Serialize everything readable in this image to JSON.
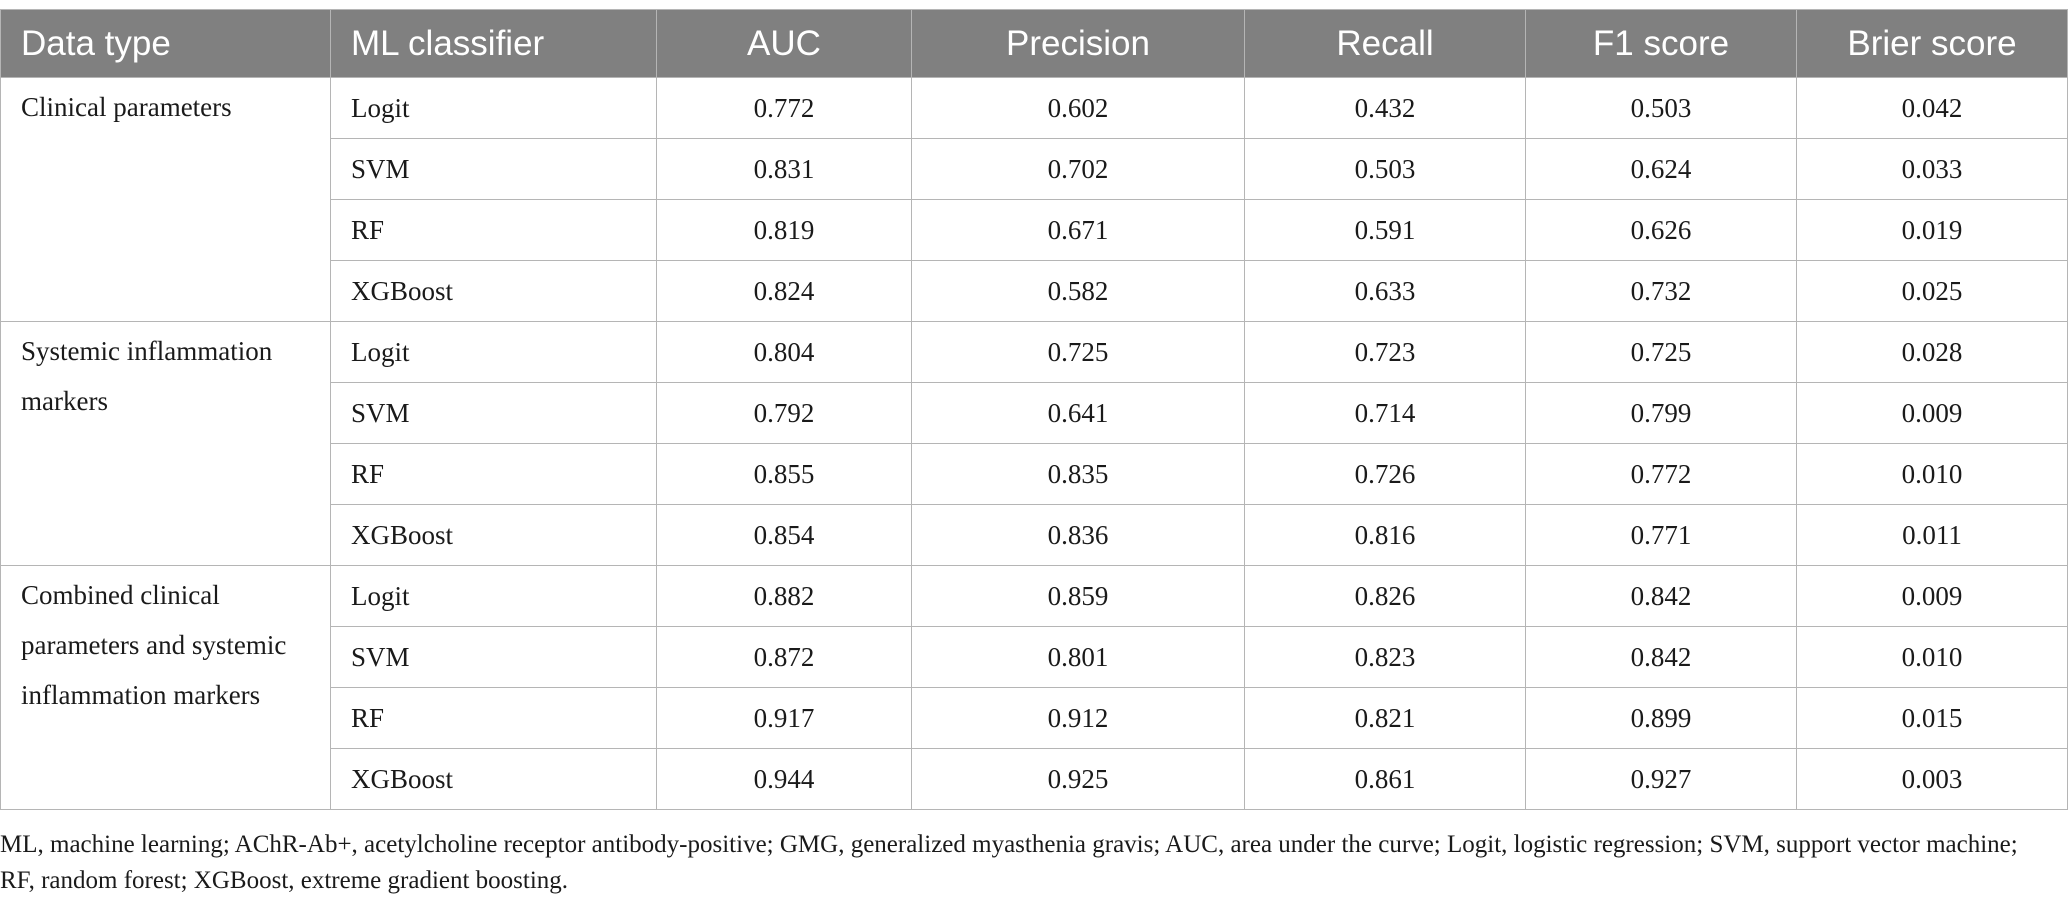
{
  "table": {
    "headers": [
      "Data type",
      "ML classifier",
      "AUC",
      "Precision",
      "Recall",
      "F1 score",
      "Brier score"
    ],
    "groups": [
      {
        "data_type": "Clinical parameters",
        "rows": [
          {
            "classifier": "Logit",
            "values": [
              "0.772",
              "0.602",
              "0.432",
              "0.503",
              "0.042"
            ]
          },
          {
            "classifier": "SVM",
            "values": [
              "0.831",
              "0.702",
              "0.503",
              "0.624",
              "0.033"
            ]
          },
          {
            "classifier": "RF",
            "values": [
              "0.819",
              "0.671",
              "0.591",
              "0.626",
              "0.019"
            ]
          },
          {
            "classifier": "XGBoost",
            "values": [
              "0.824",
              "0.582",
              "0.633",
              "0.732",
              "0.025"
            ]
          }
        ]
      },
      {
        "data_type": "Systemic inflammation markers",
        "rows": [
          {
            "classifier": "Logit",
            "values": [
              "0.804",
              "0.725",
              "0.723",
              "0.725",
              "0.028"
            ]
          },
          {
            "classifier": "SVM",
            "values": [
              "0.792",
              "0.641",
              "0.714",
              "0.799",
              "0.009"
            ]
          },
          {
            "classifier": "RF",
            "values": [
              "0.855",
              "0.835",
              "0.726",
              "0.772",
              "0.010"
            ]
          },
          {
            "classifier": "XGBoost",
            "values": [
              "0.854",
              "0.836",
              "0.816",
              "0.771",
              "0.011"
            ]
          }
        ]
      },
      {
        "data_type": "Combined clinical parameters and systemic inflammation markers",
        "rows": [
          {
            "classifier": "Logit",
            "values": [
              "0.882",
              "0.859",
              "0.826",
              "0.842",
              "0.009"
            ]
          },
          {
            "classifier": "SVM",
            "values": [
              "0.872",
              "0.801",
              "0.823",
              "0.842",
              "0.010"
            ]
          },
          {
            "classifier": "RF",
            "values": [
              "0.917",
              "0.912",
              "0.821",
              "0.899",
              "0.015"
            ]
          },
          {
            "classifier": "XGBoost",
            "values": [
              "0.944",
              "0.925",
              "0.861",
              "0.927",
              "0.003"
            ]
          }
        ]
      }
    ]
  },
  "footnote": "ML, machine learning; AChR-Ab+, acetylcholine receptor antibody-positive; GMG, generalized myasthenia gravis; AUC, area under the curve; Logit, logistic regression; SVM, support vector machine; RF, random forest; XGBoost, extreme gradient boosting.",
  "colors": {
    "header_bg": "#808080",
    "header_text": "#ffffff",
    "grid": "#b5b5b5"
  }
}
